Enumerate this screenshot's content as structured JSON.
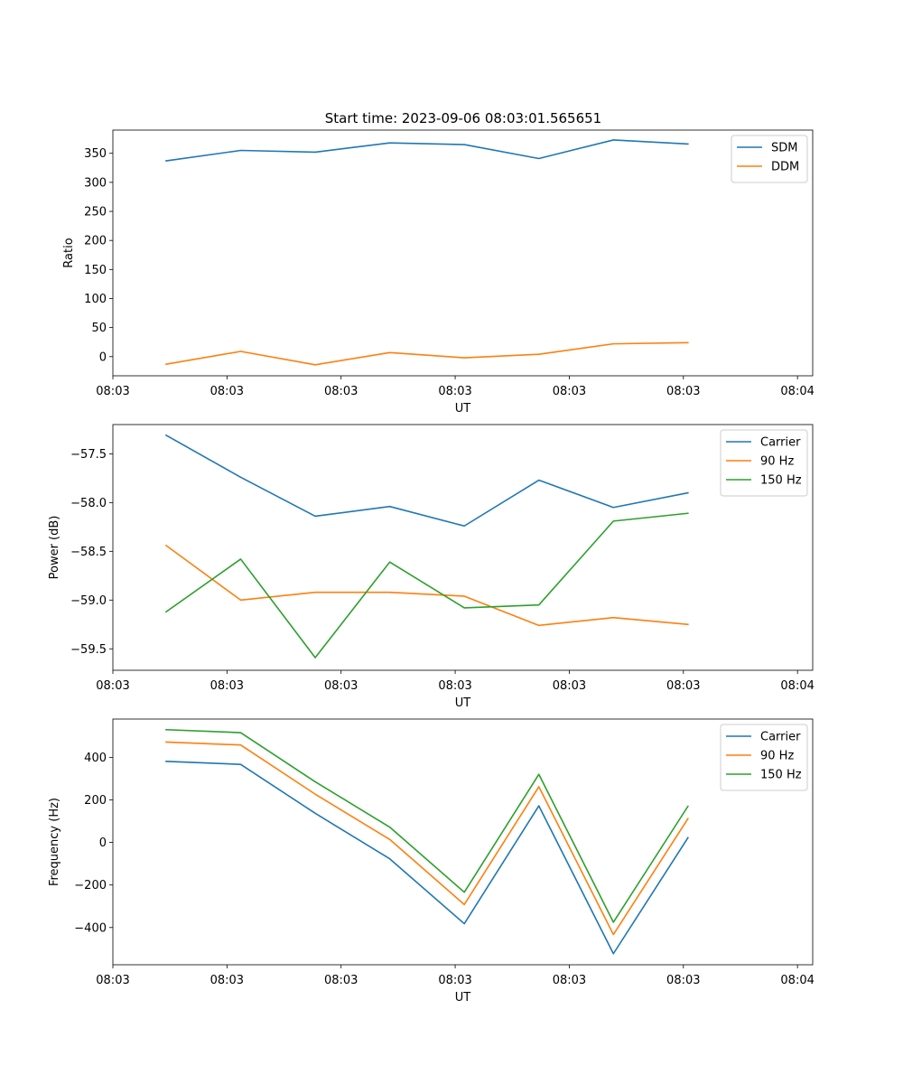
{
  "title": "Start time: 2023-09-06 08:03:01.565651",
  "colors": {
    "c0": "#1f77b4",
    "c1": "#ff7f0e",
    "c2": "#2ca02c"
  },
  "chart_data": [
    {
      "type": "line",
      "xlabel": "UT",
      "ylabel": "Ratio",
      "xlim": [
        0.0,
        4.6
      ],
      "ylim": [
        -33,
        390
      ],
      "yticks": [
        0,
        50,
        100,
        150,
        200,
        250,
        300,
        350
      ],
      "xticks": [
        0.0,
        0.75,
        1.5,
        2.25,
        3.0,
        3.75,
        4.5
      ],
      "xticklabels": [
        "08:03",
        "08:03",
        "08:03",
        "08:03",
        "08:03",
        "08:03",
        "08:04"
      ],
      "legend": "top-right",
      "x": [
        0.35,
        0.84,
        1.33,
        1.82,
        2.31,
        2.8,
        3.29,
        3.78
      ],
      "series": [
        {
          "name": "SDM",
          "values": [
            337,
            355,
            352,
            368,
            365,
            341,
            373,
            366
          ]
        },
        {
          "name": "DDM",
          "values": [
            -13,
            9,
            -14,
            7,
            -2,
            4,
            22,
            24
          ]
        }
      ]
    },
    {
      "type": "line",
      "xlabel": "UT",
      "ylabel": "Power (dB)",
      "xlim": [
        0.0,
        4.6
      ],
      "ylim": [
        -59.72,
        -57.2
      ],
      "yticks": [
        -59.5,
        -59.0,
        -58.5,
        -58.0,
        -57.5
      ],
      "yticklabels": [
        "−59.5",
        "−59.0",
        "−58.5",
        "−58.0",
        "−57.5"
      ],
      "xticks": [
        0.0,
        0.75,
        1.5,
        2.25,
        3.0,
        3.75,
        4.5
      ],
      "xticklabels": [
        "08:03",
        "08:03",
        "08:03",
        "08:03",
        "08:03",
        "08:03",
        "08:04"
      ],
      "legend": "top-right",
      "x": [
        0.35,
        0.84,
        1.33,
        1.82,
        2.31,
        2.8,
        3.29,
        3.78
      ],
      "series": [
        {
          "name": "Carrier",
          "values": [
            -57.31,
            -57.74,
            -58.14,
            -58.04,
            -58.24,
            -57.77,
            -58.05,
            -57.9
          ]
        },
        {
          "name": "90 Hz",
          "values": [
            -58.44,
            -59.0,
            -58.92,
            -58.92,
            -58.96,
            -59.26,
            -59.18,
            -59.25
          ]
        },
        {
          "name": "150 Hz",
          "values": [
            -59.12,
            -58.58,
            -59.59,
            -58.61,
            -59.08,
            -59.05,
            -58.19,
            -58.11
          ]
        }
      ]
    },
    {
      "type": "line",
      "xlabel": "UT",
      "ylabel": "Frequency (Hz)",
      "xlim": [
        0.0,
        4.6
      ],
      "ylim": [
        -575,
        580
      ],
      "yticks": [
        -400,
        -200,
        0,
        200,
        400
      ],
      "yticklabels": [
        "−400",
        "−200",
        "0",
        "200",
        "400"
      ],
      "xticks": [
        0.0,
        0.75,
        1.5,
        2.25,
        3.0,
        3.75,
        4.5
      ],
      "xticklabels": [
        "08:03",
        "08:03",
        "08:03",
        "08:03",
        "08:03",
        "08:03",
        "08:04"
      ],
      "legend": "top-right",
      "x": [
        0.35,
        0.84,
        1.33,
        1.82,
        2.31,
        2.8,
        3.29,
        3.78
      ],
      "series": [
        {
          "name": "Carrier",
          "values": [
            381,
            367,
            137,
            -77,
            -382,
            172,
            -523,
            22
          ]
        },
        {
          "name": "90 Hz",
          "values": [
            472,
            458,
            227,
            14,
            -292,
            262,
            -433,
            112
          ]
        },
        {
          "name": "150 Hz",
          "values": [
            530,
            516,
            285,
            72,
            -234,
            320,
            -375,
            170
          ]
        }
      ]
    }
  ]
}
